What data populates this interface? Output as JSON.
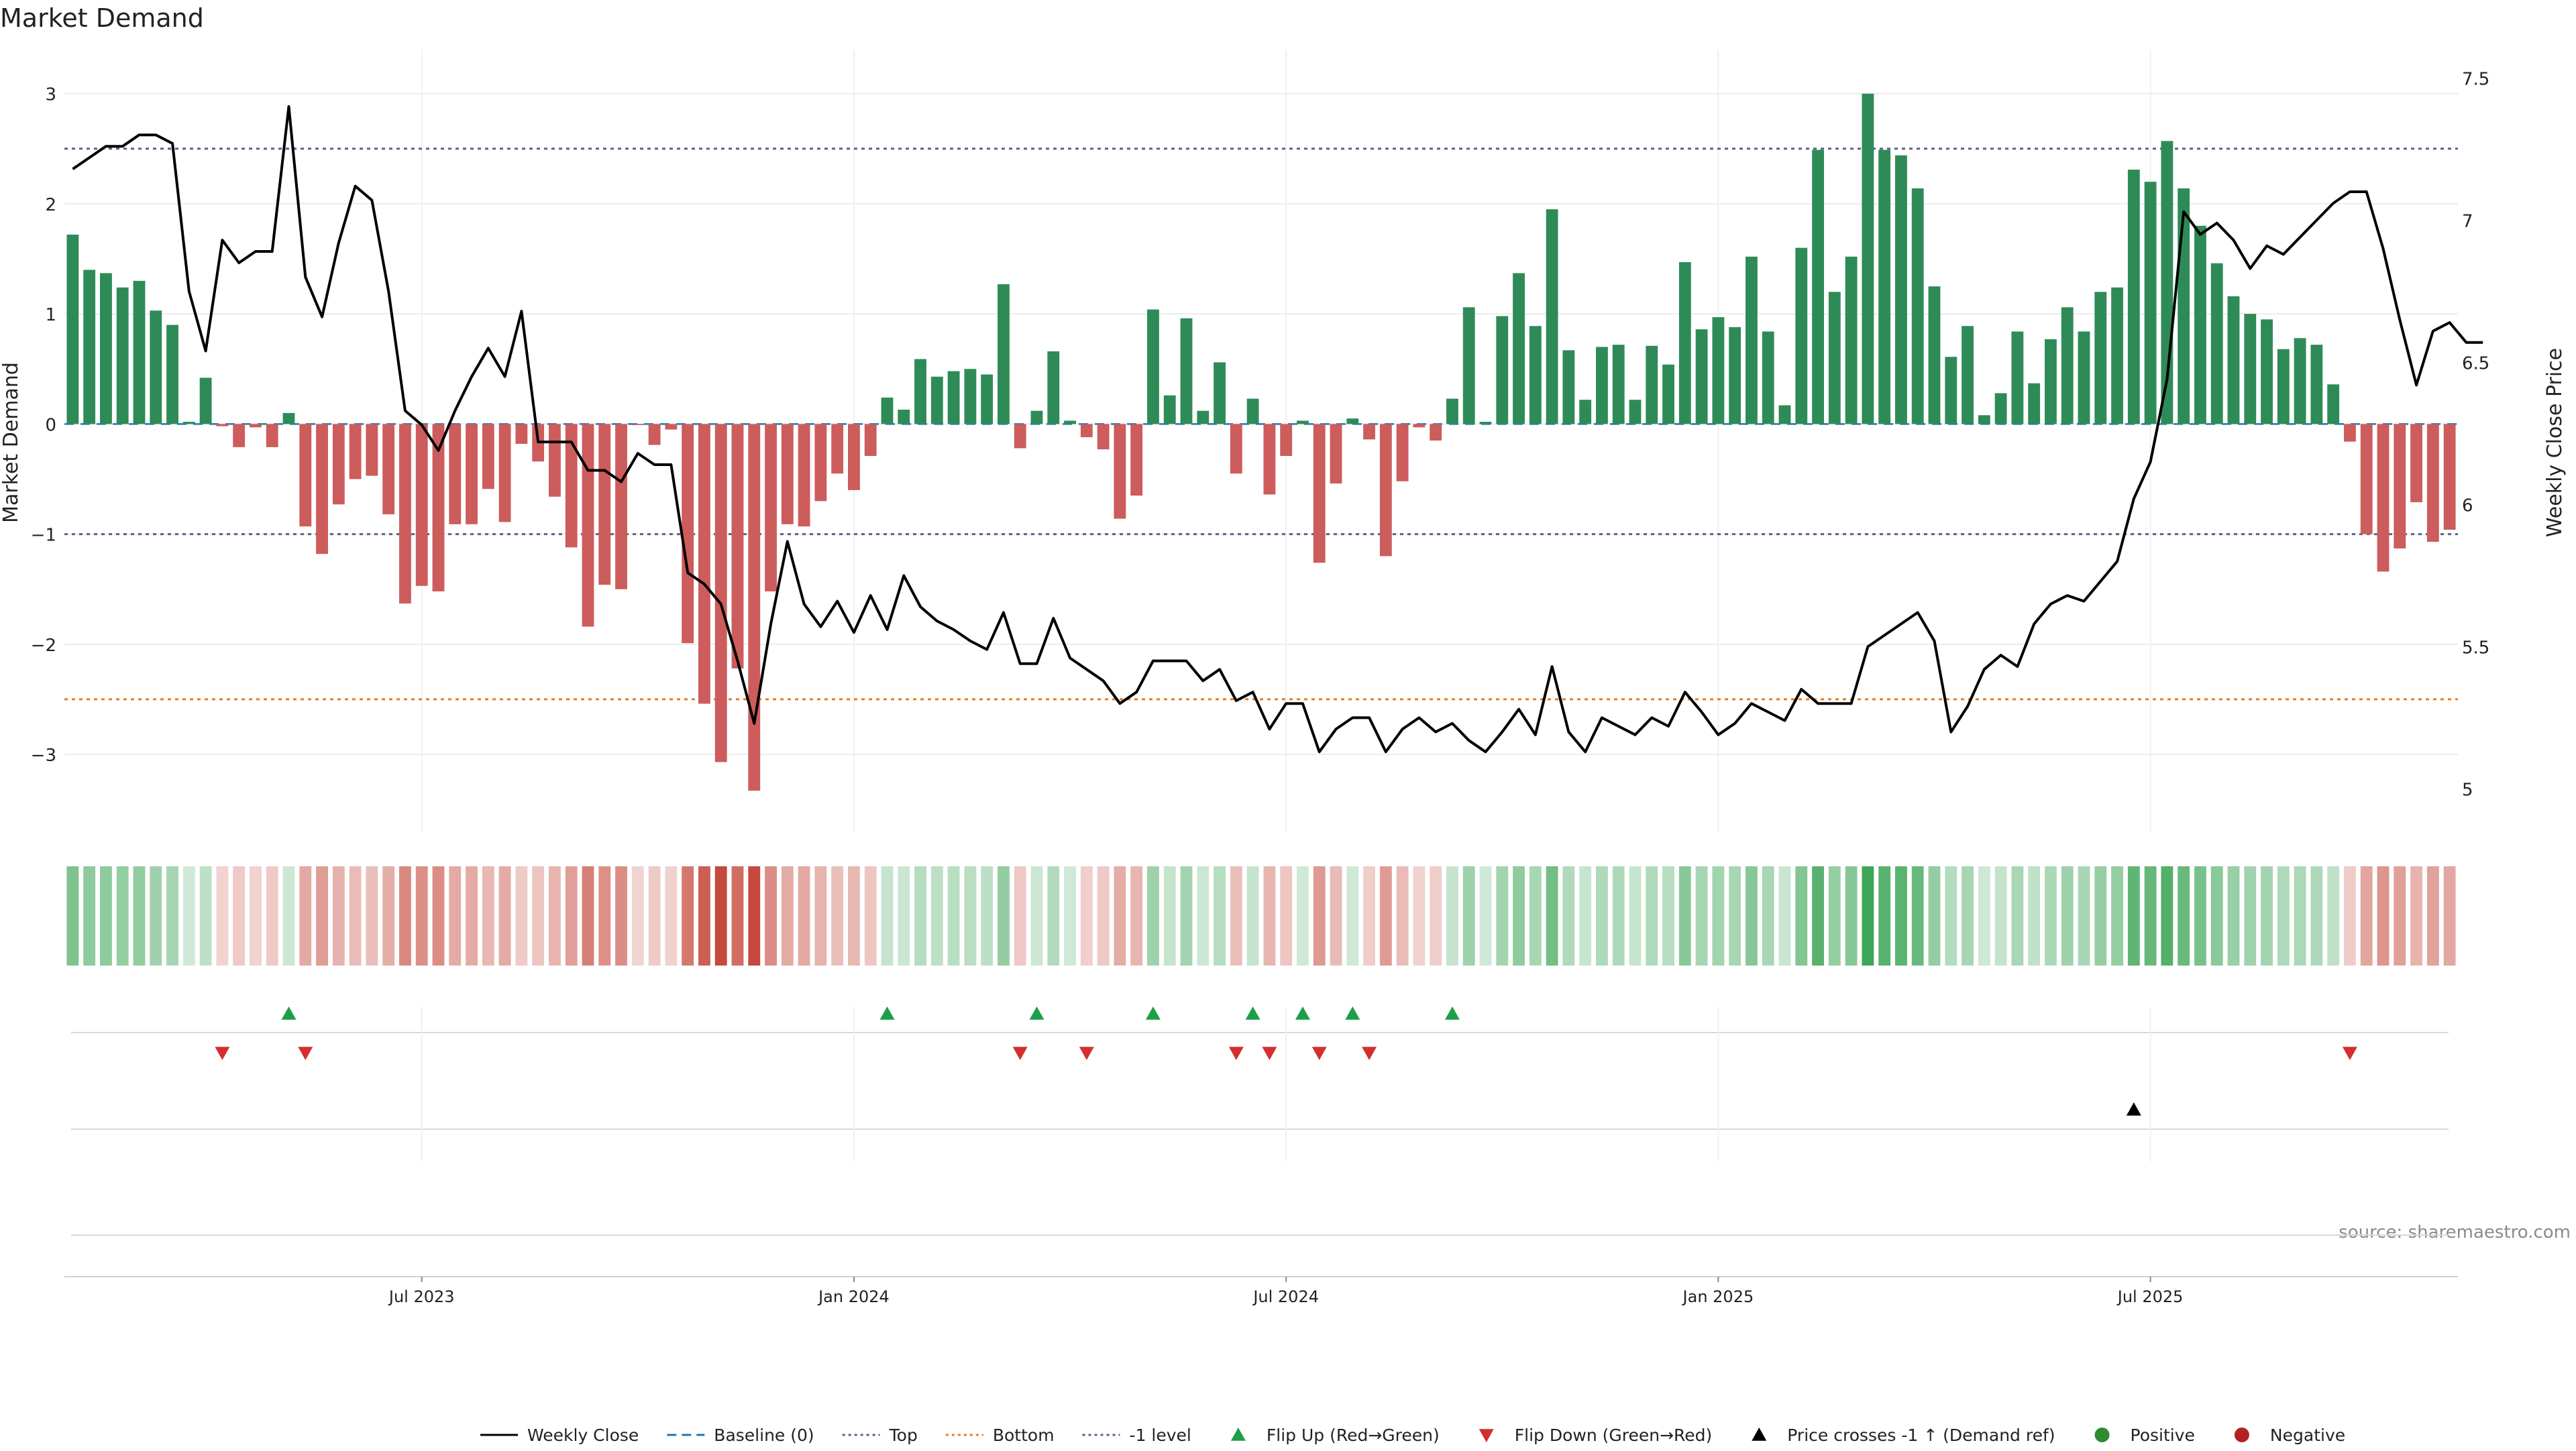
{
  "chart_data": {
    "type": "bar",
    "title": "Market Demand",
    "ylabel": "Market Demand",
    "y2label": "Weekly Close Price",
    "ylim": [
      -3.7,
      3.4
    ],
    "y_ticks": [
      3,
      2,
      1,
      0,
      -1,
      -2,
      -3
    ],
    "y_tick_labels": [
      "3",
      "2",
      "1",
      "0",
      "−1",
      "−2",
      "−3"
    ],
    "y2lim": [
      4.85,
      7.6
    ],
    "y2_ticks": [
      7.5,
      7,
      6.5,
      6,
      5.5,
      5
    ],
    "y2_tick_labels": [
      "7.5",
      "7",
      "6.5",
      "6",
      "5.5",
      "5"
    ],
    "x_tick_labels": [
      "Jul 2023",
      "Jan 2024",
      "Jul 2024",
      "Jan 2025",
      "Jul 2025"
    ],
    "grid": true,
    "levels": {
      "top": 2.5,
      "bottom": -2.5,
      "minus_one": -1
    },
    "series": [
      {
        "name": "Market Demand",
        "kind": "bar",
        "values": [
          1.72,
          1.4,
          1.37,
          1.24,
          1.3,
          1.03,
          0.9,
          0.02,
          0.42,
          -0.02,
          -0.21,
          -0.03,
          -0.21,
          0.1,
          -0.93,
          -1.18,
          -0.73,
          -0.5,
          -0.47,
          -0.82,
          -1.63,
          -1.47,
          -1.52,
          -0.91,
          -0.91,
          -0.59,
          -0.89,
          -0.18,
          -0.34,
          -0.66,
          -1.12,
          -1.84,
          -1.46,
          -1.5,
          -0.01,
          -0.19,
          -0.05,
          -1.99,
          -2.54,
          -3.07,
          -2.22,
          -3.33,
          -1.52,
          -0.91,
          -0.93,
          -0.7,
          -0.45,
          -0.6,
          -0.29,
          0.24,
          0.13,
          0.59,
          0.43,
          0.48,
          0.5,
          0.45,
          1.27,
          -0.22,
          0.12,
          0.66,
          0.03,
          -0.12,
          -0.23,
          -0.86,
          -0.65,
          1.04,
          0.26,
          0.96,
          0.12,
          0.56,
          -0.45,
          0.23,
          -0.64,
          -0.29,
          0.03,
          -1.26,
          -0.54,
          0.05,
          -0.14,
          -1.2,
          -0.52,
          -0.03,
          -0.15,
          0.23,
          1.06,
          0.02,
          0.98,
          1.37,
          0.89,
          1.95,
          0.67,
          0.22,
          0.7,
          0.72,
          0.22,
          0.71,
          0.54,
          1.47,
          0.86,
          0.97,
          0.88,
          1.52,
          0.84,
          0.17,
          1.6,
          2.49,
          1.2,
          1.52,
          3.0,
          2.49,
          2.44,
          2.14,
          1.25,
          0.61,
          0.89,
          0.08,
          0.28,
          0.84,
          0.37,
          0.77,
          1.06,
          0.84,
          1.2,
          1.24,
          2.31,
          2.2,
          2.57,
          2.14,
          1.8,
          1.46,
          1.16,
          1.0,
          0.95,
          0.68,
          0.78,
          0.72,
          0.36,
          -0.16,
          -1.0,
          -1.34,
          -1.13,
          -0.71,
          -1.07,
          -0.96
        ]
      },
      {
        "name": "Weekly Close",
        "kind": "line",
        "values": [
          7.18,
          7.22,
          7.26,
          7.26,
          7.3,
          7.3,
          7.27,
          6.75,
          6.54,
          6.93,
          6.85,
          6.89,
          6.89,
          7.4,
          6.8,
          6.66,
          6.92,
          7.12,
          7.07,
          6.75,
          6.33,
          6.28,
          6.19,
          6.33,
          6.45,
          6.55,
          6.45,
          6.68,
          6.22,
          6.22,
          6.22,
          6.12,
          6.12,
          6.08,
          6.18,
          6.14,
          6.14,
          5.76,
          5.72,
          5.65,
          5.45,
          5.23,
          5.58,
          5.87,
          5.65,
          5.57,
          5.66,
          5.55,
          5.68,
          5.56,
          5.75,
          5.64,
          5.59,
          5.56,
          5.52,
          5.49,
          5.62,
          5.44,
          5.44,
          5.6,
          5.46,
          5.42,
          5.38,
          5.3,
          5.34,
          5.45,
          5.45,
          5.45,
          5.38,
          5.42,
          5.31,
          5.34,
          5.21,
          5.3,
          5.3,
          5.13,
          5.21,
          5.25,
          5.25,
          5.13,
          5.21,
          5.25,
          5.2,
          5.23,
          5.17,
          5.13,
          5.2,
          5.28,
          5.19,
          5.43,
          5.2,
          5.13,
          5.25,
          5.22,
          5.19,
          5.25,
          5.22,
          5.34,
          5.27,
          5.19,
          5.23,
          5.3,
          5.27,
          5.24,
          5.35,
          5.3,
          5.3,
          5.3,
          5.5,
          5.54,
          5.58,
          5.62,
          5.52,
          5.2,
          5.29,
          5.42,
          5.47,
          5.43,
          5.58,
          5.65,
          5.68,
          5.66,
          5.73,
          5.8,
          6.02,
          6.15,
          6.44,
          7.03,
          6.95,
          6.99,
          6.93,
          6.83,
          6.91,
          6.88,
          6.94,
          7.0,
          7.06,
          7.1,
          7.1,
          6.9,
          6.65,
          6.42,
          6.61,
          6.64,
          6.57,
          6.57
        ]
      }
    ],
    "flip_up_indices": [
      13,
      49,
      58,
      65,
      71,
      74,
      77,
      83
    ],
    "flip_down_indices": [
      9,
      14,
      57,
      61,
      70,
      72,
      75,
      78,
      137
    ],
    "price_cross_indices": [
      124
    ],
    "source": "source: sharemaestro.com",
    "legend_position": "bottom",
    "legend": [
      {
        "label": "Weekly Close",
        "symbol": "line-solid",
        "color": "#000000"
      },
      {
        "label": "Baseline (0)",
        "symbol": "line-dashed",
        "color": "#1f77b4"
      },
      {
        "label": "Top",
        "symbol": "line-dotted",
        "color": "#5f5f8c"
      },
      {
        "label": "Bottom",
        "symbol": "line-dotted",
        "color": "#e67e22"
      },
      {
        "label": "-1 level",
        "symbol": "line-dotted",
        "color": "#5f5f8c"
      },
      {
        "label": "Flip Up (Red→Green)",
        "symbol": "triangle-up",
        "color": "#1e9e4a"
      },
      {
        "label": "Flip Down (Green→Red)",
        "symbol": "triangle-down",
        "color": "#d32f2f"
      },
      {
        "label": "Price crosses -1 ↑ (Demand ref)",
        "symbol": "triangle-up",
        "color": "#000000"
      },
      {
        "label": "Positive",
        "symbol": "dot",
        "color": "#2e8b2e"
      },
      {
        "label": "Negative",
        "symbol": "dot",
        "color": "#b22222"
      }
    ],
    "colors": {
      "positive_bar": "#2e8b57",
      "negative_bar": "#cd5c5c",
      "price_line": "#000000",
      "flip_up": "#1e9e4a",
      "flip_down": "#d32f2f",
      "top_level": "#5f5f8c",
      "bottom_level": "#e67e22",
      "minus_one_level": "#5f5f8c",
      "baseline": "#1f77b4"
    }
  }
}
